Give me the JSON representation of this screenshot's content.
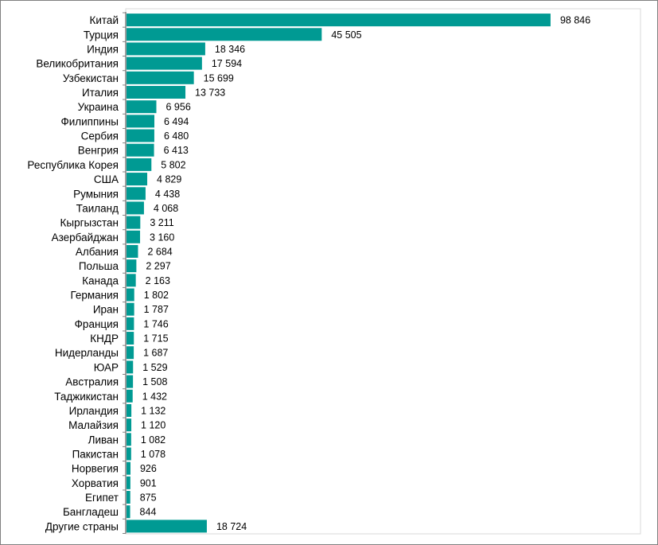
{
  "chart_data": {
    "type": "bar",
    "orientation": "horizontal",
    "title": "",
    "xlabel": "",
    "ylabel": "",
    "xlim": [
      0,
      120000
    ],
    "grid": false,
    "legend": "none",
    "bar_color": "#009a93",
    "categories": [
      "Китай",
      "Турция",
      "Индия",
      "Великобритания",
      "Узбекистан",
      "Италия",
      "Украина",
      "Филиппины",
      "Сербия",
      "Венгрия",
      "Республика Корея",
      "США",
      "Румыния",
      "Таиланд",
      "Кыргызстан",
      "Азербайджан",
      "Албания",
      "Польша",
      "Канада",
      "Германия",
      "Иран",
      "Франция",
      "КНДР",
      "Нидерланды",
      "ЮАР",
      "Австралия",
      "Таджикистан",
      "Ирландия",
      "Малайзия",
      "Ливан",
      "Пакистан",
      "Норвегия",
      "Хорватия",
      "Египет",
      "Бангладеш",
      "Другие страны"
    ],
    "values": [
      98846,
      45505,
      18346,
      17594,
      15699,
      13733,
      6956,
      6494,
      6480,
      6413,
      5802,
      4829,
      4438,
      4068,
      3211,
      3160,
      2684,
      2297,
      2163,
      1802,
      1787,
      1746,
      1715,
      1687,
      1529,
      1508,
      1432,
      1132,
      1120,
      1082,
      1078,
      926,
      901,
      875,
      844,
      18724
    ],
    "value_labels": [
      "98 846",
      "45 505",
      "18 346",
      "17 594",
      "15 699",
      "13 733",
      "6 956",
      "6 494",
      "6 480",
      "6 413",
      "5 802",
      "4 829",
      "4 438",
      "4 068",
      "3 211",
      "3 160",
      "2 684",
      "2 297",
      "2 163",
      "1 802",
      "1 787",
      "1 746",
      "1 715",
      "1 687",
      "1 529",
      "1 508",
      "1 432",
      "1 132",
      "1 120",
      "1 082",
      "1 078",
      "926",
      "901",
      "875",
      "844",
      "18 724"
    ]
  }
}
